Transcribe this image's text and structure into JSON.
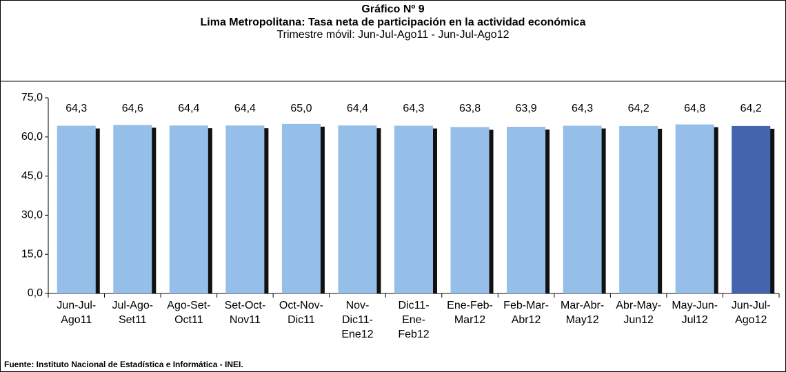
{
  "chart_data": {
    "type": "bar",
    "heading": "Gráfico Nº 9",
    "title": "Lima Metropolitana: Tasa neta de participación en la actividad económica",
    "subtitle": "Trimestre móvil: Jun-Jul-Ago11 - Jun-Jul-Ago12",
    "source": "Fuente: Instituto Nacional de Estadística e Informática - INEI.",
    "categories": [
      "Jun-Jul-Ago11",
      "Jul-Ago-Set11",
      "Ago-Set-Oct11",
      "Set-Oct-Nov11",
      "Oct-Nov-Dic11",
      "Nov-Dic11-Ene12",
      "Dic11-Ene-Feb12",
      "Ene-Feb-Mar12",
      "Feb-Mar-Abr12",
      "Mar-Abr-May12",
      "Abr-May-Jun12",
      "May-Jun-Jul12",
      "Jun-Jul-Ago12"
    ],
    "values": [
      64.3,
      64.6,
      64.4,
      64.4,
      65.0,
      64.4,
      64.3,
      63.8,
      63.9,
      64.3,
      64.2,
      64.8,
      64.2
    ],
    "value_labels": [
      "64,3",
      "64,6",
      "64,4",
      "64,4",
      "65,0",
      "64,4",
      "64,3",
      "63,8",
      "63,9",
      "64,3",
      "64,2",
      "64,8",
      "64,2"
    ],
    "colors": [
      "#95bfe8",
      "#95bfe8",
      "#95bfe8",
      "#95bfe8",
      "#95bfe8",
      "#95bfe8",
      "#95bfe8",
      "#95bfe8",
      "#95bfe8",
      "#95bfe8",
      "#95bfe8",
      "#95bfe8",
      "#4465ad"
    ],
    "ylim": [
      0,
      75
    ],
    "yticks": [
      {
        "value": 0,
        "label": "0,0"
      },
      {
        "value": 15,
        "label": "15,0"
      },
      {
        "value": 30,
        "label": "30,0"
      },
      {
        "value": 45,
        "label": "45,0"
      },
      {
        "value": 60,
        "label": "60,0"
      },
      {
        "value": 75,
        "label": "75,0"
      }
    ],
    "grid": false
  }
}
